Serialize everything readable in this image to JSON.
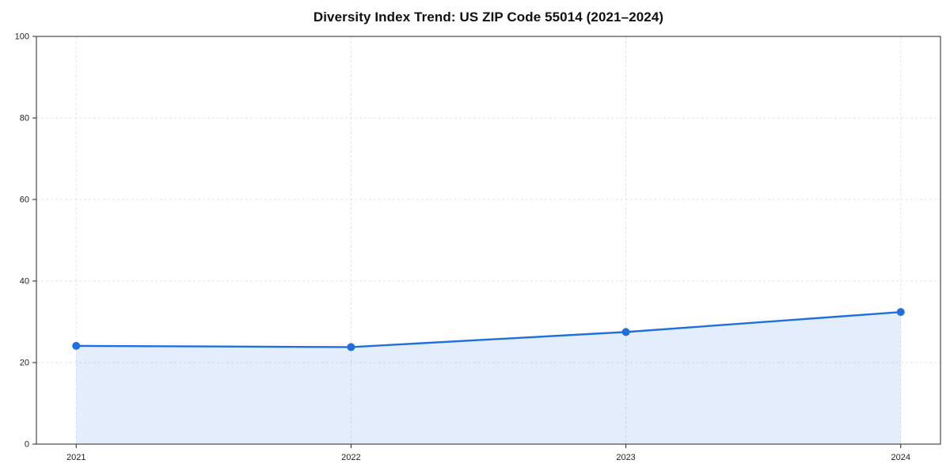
{
  "chart_data": {
    "type": "area",
    "title": "Diversity Index Trend: US ZIP Code 55014 (2021–2024)",
    "categories": [
      "2021",
      "2022",
      "2023",
      "2024"
    ],
    "series": [
      {
        "name": "Diversity Index",
        "values": [
          24.1,
          23.8,
          27.5,
          32.4
        ]
      }
    ],
    "xlabel": "",
    "ylabel": "",
    "ylim": [
      0,
      100
    ],
    "yticks": [
      0,
      20,
      40,
      60,
      80,
      100
    ],
    "grid": true,
    "grid_style": "dashed",
    "legend_position": "none",
    "line_color": "#1f6fe0",
    "marker_color": "#1f6fe0",
    "fill_color": "#1f6fe0",
    "fill_opacity": 0.12,
    "grid_color": "#e2e2e2",
    "spine_color": "#262626",
    "tick_color": "#222222"
  }
}
